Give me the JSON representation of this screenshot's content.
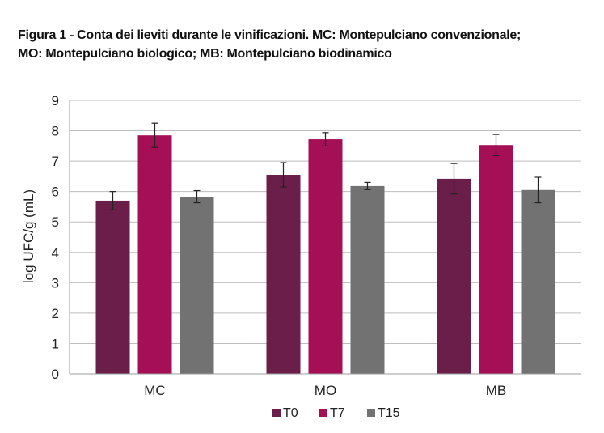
{
  "figure": {
    "title_line1": "Figura 1 - Conta dei lieviti durante le vinificazioni. MC: Montepulciano convenzionale;",
    "title_line2": "MO: Montepulciano biologico; MB: Montepulciano biodinamico"
  },
  "chart_data": {
    "type": "bar",
    "title": "Figura 1 - Conta dei lieviti durante le vinificazioni. MC: Montepulciano convenzionale; MO: Montepulciano biologico; MB: Montepulciano biodinamico",
    "xlabel": "",
    "ylabel": "log UFC/g (mL)",
    "ylim": [
      0,
      9
    ],
    "yticks": [
      0,
      1,
      2,
      3,
      4,
      5,
      6,
      7,
      8,
      9
    ],
    "grid": true,
    "legend_position": "bottom",
    "categories": [
      "MC",
      "MO",
      "MB"
    ],
    "series": [
      {
        "name": "T0",
        "color": "#6b1e4a",
        "values": [
          5.7,
          6.55,
          6.42
        ],
        "errors": [
          0.3,
          0.4,
          0.5
        ]
      },
      {
        "name": "T7",
        "color": "#a50f55",
        "values": [
          7.85,
          7.72,
          7.53
        ],
        "errors": [
          0.4,
          0.22,
          0.35
        ]
      },
      {
        "name": "T15",
        "color": "#727272",
        "values": [
          5.83,
          6.18,
          6.05
        ],
        "errors": [
          0.2,
          0.12,
          0.42
        ]
      }
    ]
  }
}
